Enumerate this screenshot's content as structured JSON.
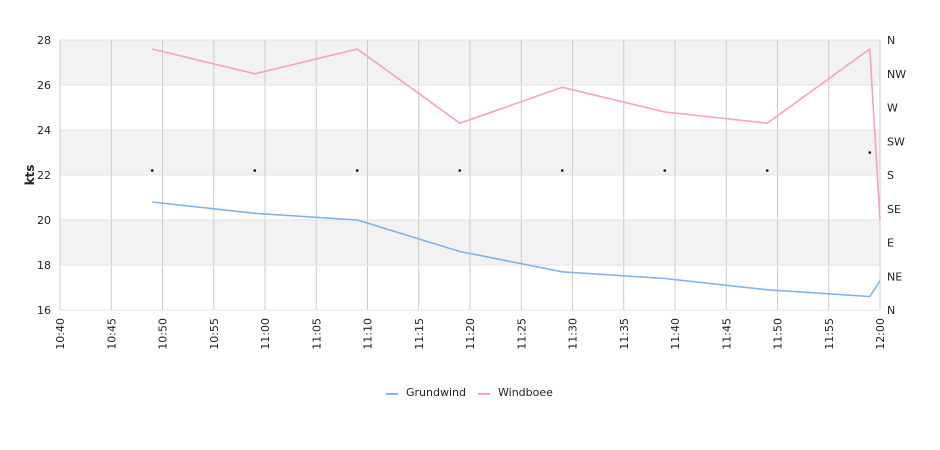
{
  "chart_data": {
    "type": "line",
    "ylabel": "kts",
    "ylim": [
      16,
      28
    ],
    "y_ticks": [
      "16",
      "18",
      "20",
      "22",
      "24",
      "26",
      "28"
    ],
    "x_range": [
      "10:40",
      "12:00"
    ],
    "x_ticks": [
      "10:40",
      "10:45",
      "10:50",
      "10:55",
      "11:00",
      "11:05",
      "11:10",
      "11:15",
      "11:20",
      "11:25",
      "11:30",
      "11:35",
      "11:40",
      "11:45",
      "11:50",
      "11:55",
      "12:00"
    ],
    "right_axis_labels": [
      "N",
      "NE",
      "E",
      "SE",
      "S",
      "SW",
      "W",
      "NW",
      "N"
    ],
    "grid": true,
    "legend_position": "bottom",
    "series": [
      {
        "name": "Grundwind",
        "color": "#7cb5ec",
        "points": [
          [
            "10:49",
            20.8
          ],
          [
            "10:59",
            20.3
          ],
          [
            "11:09",
            20.0
          ],
          [
            "11:19",
            18.6
          ],
          [
            "11:29",
            17.7
          ],
          [
            "11:39",
            17.4
          ],
          [
            "11:49",
            16.9
          ],
          [
            "11:59",
            16.6
          ],
          [
            "12:00",
            17.3
          ]
        ]
      },
      {
        "name": "Windboee",
        "color": "#f7a1c4",
        "points": [
          [
            "10:49",
            27.6
          ],
          [
            "10:59",
            26.5
          ],
          [
            "11:09",
            27.6
          ],
          [
            "11:19",
            24.3
          ],
          [
            "11:29",
            25.9
          ],
          [
            "11:39",
            24.8
          ],
          [
            "11:49",
            24.3
          ],
          [
            "11:59",
            27.6
          ],
          [
            "12:00",
            20.0
          ]
        ]
      }
    ],
    "direction_markers": [
      [
        "10:49",
        22.2
      ],
      [
        "10:59",
        22.2
      ],
      [
        "11:09",
        22.2
      ],
      [
        "11:19",
        22.2
      ],
      [
        "11:29",
        22.2
      ],
      [
        "11:39",
        22.2
      ],
      [
        "11:49",
        22.2
      ],
      [
        "11:59",
        23.0
      ]
    ]
  }
}
